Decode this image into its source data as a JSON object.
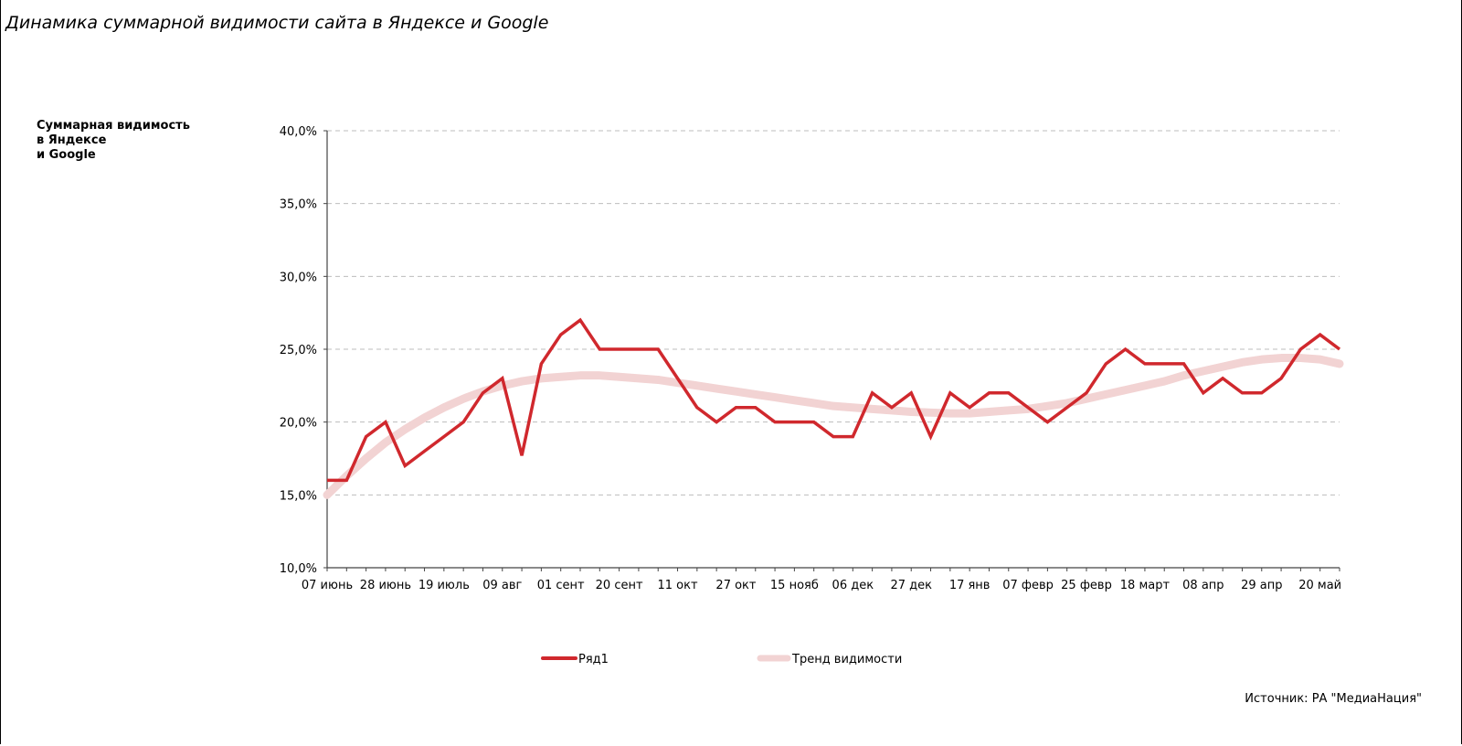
{
  "page": {
    "title": "Динамика суммарной видимости сайта в Яндексе и Google",
    "y_axis_title_lines": [
      "Суммарная видимость",
      "в Яндексе",
      "и Google"
    ],
    "source": "Источник: РА \"МедиаНация\""
  },
  "chart_data": {
    "type": "line",
    "title": "Динамика суммарной видимости сайта в Яндексе и Google",
    "ylabel": "Суммарная видимость в Яндексе и Google",
    "xlabel": "",
    "ylim": [
      10,
      40
    ],
    "y_ticks": [
      10,
      15,
      20,
      25,
      30,
      35,
      40
    ],
    "y_tick_labels": [
      "10,0%",
      "15,0%",
      "20,0%",
      "25,0%",
      "30,0%",
      "35,0%",
      "40,0%"
    ],
    "grid": true,
    "legend_position": "bottom",
    "x_tick_labels": [
      "07 июнь",
      "28 июнь",
      "19 июль",
      "09 авг",
      "01 сент",
      "20 сент",
      "11 окт",
      "27 окт",
      "15 нояб",
      "06 дек",
      "27 дек",
      "17 янв",
      "07 февр",
      "25 февр",
      "18 март",
      "08 апр",
      "29 апр",
      "20 май"
    ],
    "series": [
      {
        "name": "Ряд1",
        "color": "#d0282d",
        "values": [
          16,
          16,
          19,
          20,
          17,
          18,
          19,
          20,
          22,
          23,
          17.7,
          24,
          26,
          27,
          25,
          25,
          25,
          25,
          23,
          21,
          20,
          21,
          21,
          20,
          20,
          20,
          19,
          19,
          22,
          21,
          22,
          19,
          22,
          21,
          22,
          22,
          21,
          20,
          21,
          22,
          24,
          25,
          24,
          24,
          24,
          22,
          23,
          22,
          22,
          23,
          25,
          26,
          25
        ]
      },
      {
        "name": "Тренд видимости",
        "color": "#f2d3d3",
        "values": [
          15,
          16.3,
          17.5,
          18.6,
          19.5,
          20.3,
          21,
          21.6,
          22.1,
          22.5,
          22.8,
          23,
          23.1,
          23.2,
          23.2,
          23.1,
          23,
          22.9,
          22.7,
          22.5,
          22.3,
          22.1,
          21.9,
          21.7,
          21.5,
          21.3,
          21.1,
          21,
          20.9,
          20.8,
          20.7,
          20.65,
          20.6,
          20.6,
          20.7,
          20.8,
          20.9,
          21.1,
          21.3,
          21.6,
          21.9,
          22.2,
          22.5,
          22.8,
          23.2,
          23.5,
          23.8,
          24.1,
          24.3,
          24.4,
          24.4,
          24.3,
          24
        ]
      }
    ]
  }
}
